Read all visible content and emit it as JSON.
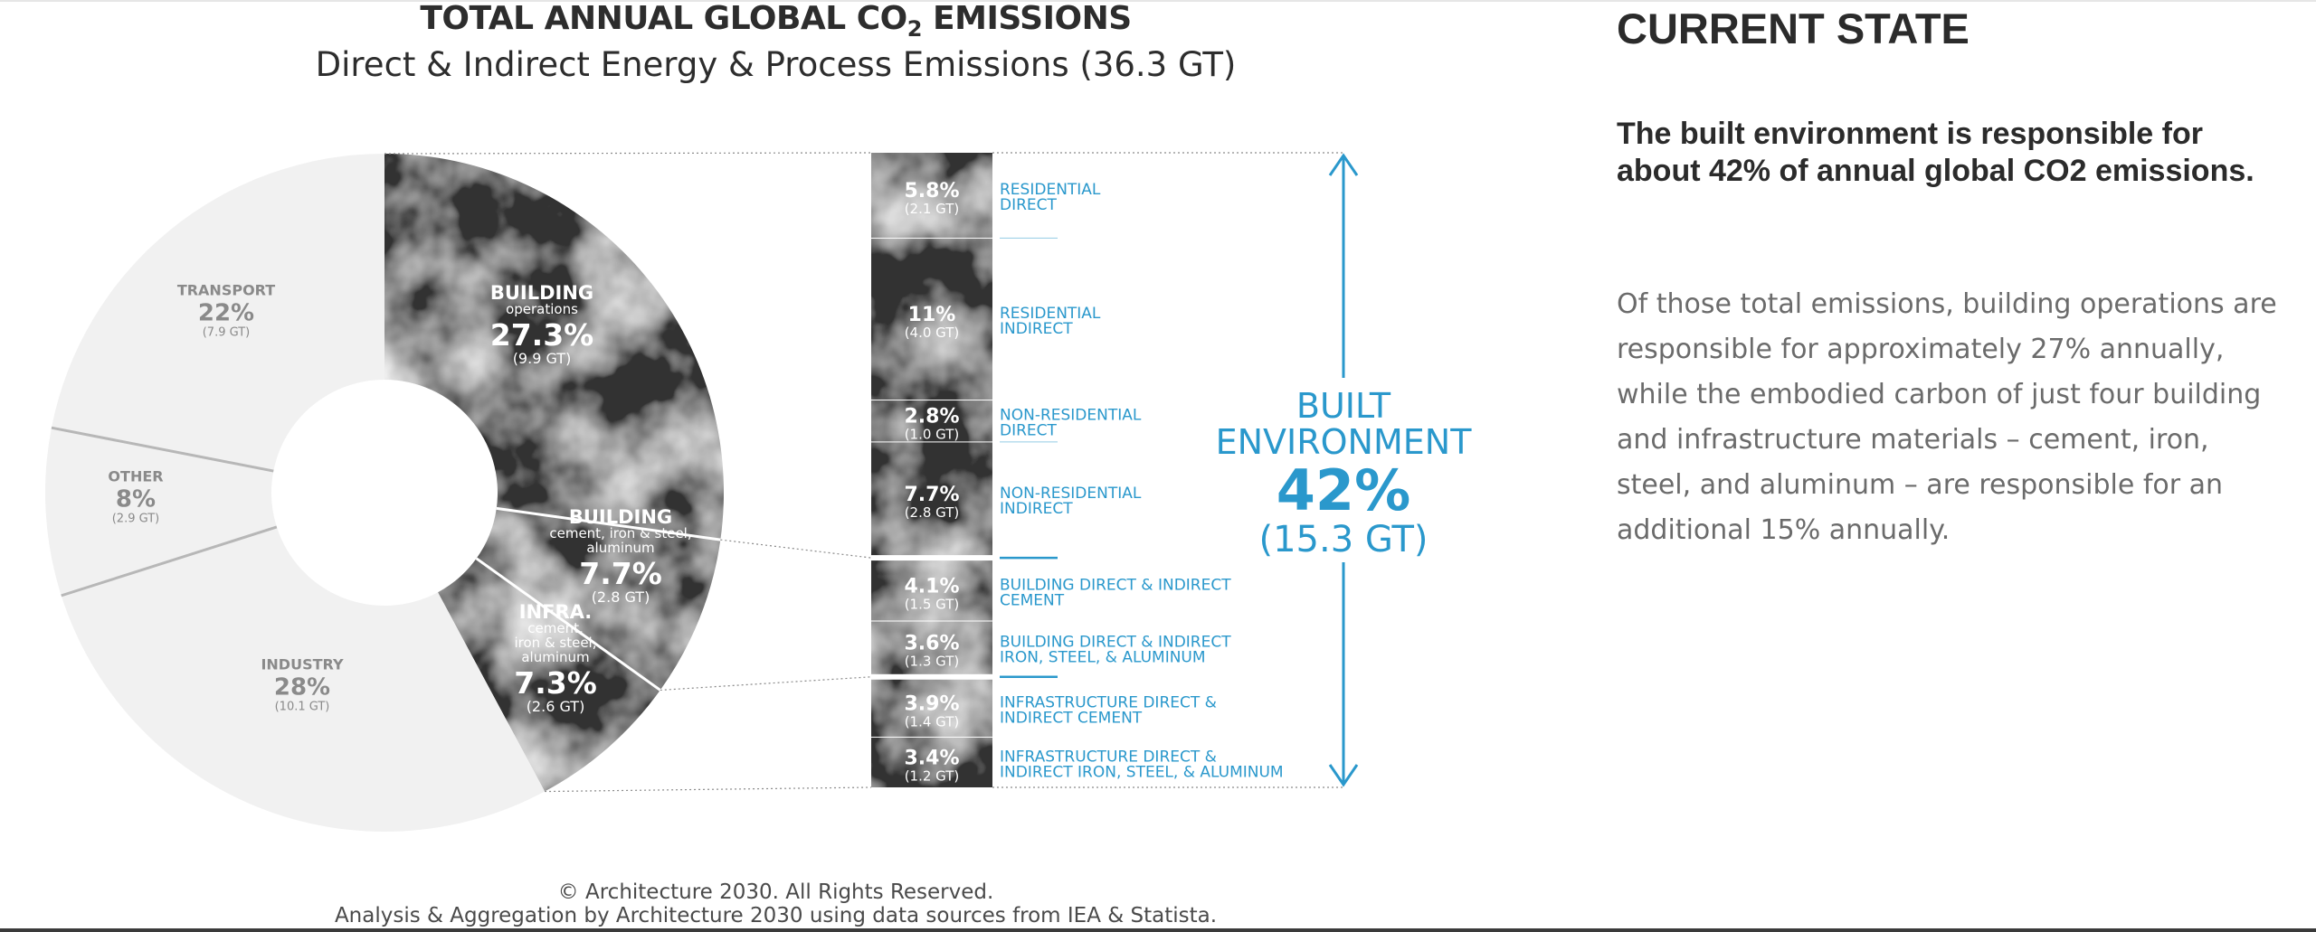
{
  "chart_data": {
    "type": "pie",
    "title": "TOTAL ANNUAL GLOBAL CO",
    "title_subscript": "2",
    "title_suffix": " EMISSIONS",
    "subtitle": "Direct & Indirect Energy & Process Emissions (36.3 GT)",
    "total_gt": 36.3,
    "slices": [
      {
        "name": "BUILDING",
        "sub": "operations",
        "value_pct": 27.3,
        "pct_label": "27.3%",
        "gt_label": "(9.9 GT)",
        "style": "dark"
      },
      {
        "name": "BUILDING",
        "sub_lines": [
          "cement, iron & steel,",
          "aluminum"
        ],
        "value_pct": 7.7,
        "pct_label": "7.7%",
        "gt_label": "(2.8 GT)",
        "style": "dark"
      },
      {
        "name": "INFRA.",
        "sub_lines": [
          "cement,",
          "iron & steel,",
          "aluminum"
        ],
        "value_pct": 7.3,
        "pct_label": "7.3%",
        "gt_label": "(2.6 GT)",
        "style": "dark"
      },
      {
        "name": "INDUSTRY",
        "value_pct": 28,
        "pct_label": "28%",
        "gt_label": "(10.1 GT)",
        "style": "light"
      },
      {
        "name": "OTHER",
        "value_pct": 8,
        "pct_label": "8%",
        "gt_label": "(2.9 GT)",
        "style": "light"
      },
      {
        "name": "TRANSPORT",
        "value_pct": 22,
        "pct_label": "22%",
        "gt_label": "(7.9 GT)",
        "style": "light"
      }
    ],
    "breakdown": [
      {
        "pct": "5.8%",
        "value_pct": 5.8,
        "gt": "(2.1 GT)",
        "label_lines": [
          "RESIDENTIAL",
          "DIRECT"
        ]
      },
      {
        "pct": "11%",
        "value_pct": 11,
        "gt": "(4.0 GT)",
        "label_lines": [
          "RESIDENTIAL",
          "INDIRECT"
        ]
      },
      {
        "pct": "2.8%",
        "value_pct": 2.8,
        "gt": "(1.0 GT)",
        "label_lines": [
          "NON-RESIDENTIAL",
          "DIRECT"
        ]
      },
      {
        "pct": "7.7%",
        "value_pct": 7.7,
        "gt": "(2.8 GT)",
        "label_lines": [
          "NON-RESIDENTIAL",
          "INDIRECT"
        ]
      },
      {
        "pct": "4.1%",
        "value_pct": 4.1,
        "gt": "(1.5 GT)",
        "label_lines": [
          "BUILDING DIRECT & INDIRECT",
          "CEMENT"
        ]
      },
      {
        "pct": "3.6%",
        "value_pct": 3.6,
        "gt": "(1.3 GT)",
        "label_lines": [
          "BUILDING DIRECT & INDIRECT",
          "IRON, STEEL, & ALUMINUM"
        ]
      },
      {
        "pct": "3.9%",
        "value_pct": 3.9,
        "gt": "(1.4 GT)",
        "label_lines": [
          "INFRASTRUCTURE DIRECT &",
          "INDIRECT CEMENT"
        ]
      },
      {
        "pct": "3.4%",
        "value_pct": 3.4,
        "gt": "(1.2 GT)",
        "label_lines": [
          "INFRASTRUCTURE DIRECT &",
          "INDIRECT IRON, STEEL, & ALUMINUM"
        ]
      }
    ],
    "built_environment": {
      "label_lines": [
        "BUILT",
        "ENVIRONMENT"
      ],
      "pct": "42%",
      "gt": "(15.3 GT)"
    },
    "colors": {
      "accent": "#2a98cc",
      "dark": "#3a3a3a",
      "light": "#f1f1f1",
      "light_text": "#8a8a8a",
      "divider": "#b7b7b7"
    }
  },
  "copyright": {
    "line1": "© Architecture 2030. All Rights Reserved.",
    "line2": "Analysis & Aggregation by Architecture 2030 using data sources from IEA & Statista."
  },
  "side_panel": {
    "heading": "CURRENT STATE",
    "lead": "The built environment is responsible for about 42% of annual global CO2 emissions.",
    "body": "Of those total emissions, building operations are responsible for approximately 27% annually, while the embodied carbon of just four building and infrastructure materials – cement, iron, steel, and aluminum – are responsible for an additional 15% annually."
  }
}
